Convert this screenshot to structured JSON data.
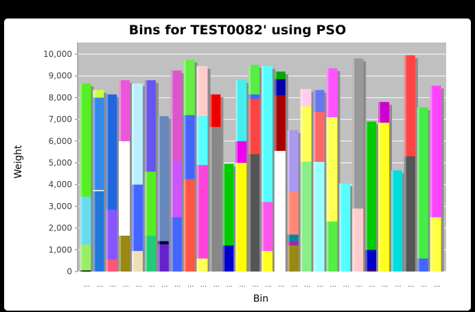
{
  "chart_data": {
    "type": "bar",
    "stacked": true,
    "title": "Bins for TEST0082' using PSO",
    "xlabel": "Bin",
    "ylabel": "Weight",
    "ylim": [
      0,
      10000
    ],
    "y_ticks": [
      "0",
      "1,000",
      "2,000",
      "3,000",
      "4,000",
      "5,000",
      "6,000",
      "7,000",
      "8,000",
      "9,000",
      "10,000"
    ],
    "grid": true,
    "legend": "none",
    "category_label": "...",
    "bins": [
      {
        "segments": [
          [
            50,
            "#000000"
          ],
          [
            1200,
            "#99ee66"
          ],
          [
            2200,
            "#66ddee"
          ],
          [
            5200,
            "#55ee22"
          ]
        ]
      },
      {
        "segments": [
          [
            3700,
            "#2277dd"
          ],
          [
            50,
            "#ffffff"
          ],
          [
            4250,
            "#3388ee"
          ],
          [
            350,
            "#ccff44"
          ]
        ]
      },
      {
        "segments": [
          [
            550,
            "#ff5577"
          ],
          [
            2300,
            "#8855ff"
          ],
          [
            5300,
            "#2266dd"
          ]
        ]
      },
      {
        "segments": [
          [
            1650,
            "#998811"
          ],
          [
            4350,
            "#ffffff"
          ],
          [
            2800,
            "#ee55dd"
          ]
        ]
      },
      {
        "segments": [
          [
            950,
            "#eeddbb"
          ],
          [
            3050,
            "#4466ff"
          ],
          [
            4650,
            "#bbeeff"
          ]
        ]
      },
      {
        "segments": [
          [
            1650,
            "#22cc77"
          ],
          [
            2950,
            "#55ee22"
          ],
          [
            4200,
            "#6655ee"
          ]
        ]
      },
      {
        "segments": [
          [
            1250,
            "#6622cc"
          ],
          [
            150,
            "#000044"
          ],
          [
            5750,
            "#6688bb"
          ]
        ]
      },
      {
        "segments": [
          [
            2500,
            "#4466ff"
          ],
          [
            2600,
            "#cc55ff"
          ],
          [
            4150,
            "#dd55cc"
          ]
        ]
      },
      {
        "segments": [
          [
            4250,
            "#ff5544"
          ],
          [
            2950,
            "#4466ff"
          ],
          [
            2550,
            "#66ee44"
          ]
        ]
      },
      {
        "segments": [
          [
            600,
            "#ffff55"
          ],
          [
            4300,
            "#ff44dd"
          ],
          [
            2250,
            "#55ffff"
          ],
          [
            2300,
            "#ffcccc"
          ]
        ]
      },
      {
        "segments": [
          [
            6650,
            "#888888"
          ],
          [
            1500,
            "#ee0000"
          ]
        ]
      },
      {
        "segments": [
          [
            1200,
            "#0000cc"
          ],
          [
            3750,
            "#00cc00"
          ]
        ]
      },
      {
        "segments": [
          [
            5000,
            "#ffff00"
          ],
          [
            1000,
            "#ee00ee"
          ],
          [
            2800,
            "#44eeee"
          ]
        ]
      },
      {
        "segments": [
          [
            5400,
            "#555555"
          ],
          [
            2550,
            "#ff4444"
          ],
          [
            200,
            "#4466ff"
          ],
          [
            1350,
            "#55ee44"
          ]
        ]
      },
      {
        "segments": [
          [
            950,
            "#ffff22"
          ],
          [
            2250,
            "#ff55ee"
          ],
          [
            6250,
            "#55ffff"
          ]
        ]
      },
      {
        "segments": [
          [
            5550,
            "#ffffff"
          ],
          [
            2550,
            "#aa0000"
          ],
          [
            750,
            "#0000aa"
          ],
          [
            350,
            "#00aa00"
          ]
        ]
      },
      {
        "segments": [
          [
            1200,
            "#998811"
          ],
          [
            200,
            "#aa22aa"
          ],
          [
            300,
            "#008899"
          ],
          [
            2000,
            "#ff8877"
          ],
          [
            2800,
            "#aa99ee"
          ]
        ]
      },
      {
        "segments": [
          [
            5050,
            "#88ee88"
          ],
          [
            2550,
            "#ffff55"
          ],
          [
            800,
            "#ffccee"
          ]
        ]
      },
      {
        "segments": [
          [
            5050,
            "#99ffff"
          ],
          [
            2300,
            "#ff6666"
          ],
          [
            1000,
            "#6677ee"
          ]
        ]
      },
      {
        "segments": [
          [
            2300,
            "#55ee44"
          ],
          [
            4800,
            "#ffff55"
          ],
          [
            2250,
            "#ff55ff"
          ]
        ]
      },
      {
        "segments": [
          [
            4050,
            "#55ffff"
          ]
        ]
      },
      {
        "segments": [
          [
            2900,
            "#ffcccc"
          ],
          [
            6900,
            "#999999"
          ]
        ]
      },
      {
        "segments": [
          [
            50,
            "#880000"
          ],
          [
            950,
            "#0000cc"
          ],
          [
            5900,
            "#00cc00"
          ]
        ]
      },
      {
        "segments": [
          [
            6850,
            "#ffff22"
          ],
          [
            950,
            "#cc00cc"
          ]
        ]
      },
      {
        "segments": [
          [
            4650,
            "#00dddd"
          ]
        ]
      },
      {
        "segments": [
          [
            5300,
            "#555555"
          ],
          [
            4650,
            "#ff4444"
          ]
        ]
      },
      {
        "segments": [
          [
            600,
            "#4466ff"
          ],
          [
            6950,
            "#44ee44"
          ]
        ]
      },
      {
        "segments": [
          [
            2500,
            "#ffff44"
          ],
          [
            6050,
            "#ff44ff"
          ]
        ]
      }
    ]
  }
}
